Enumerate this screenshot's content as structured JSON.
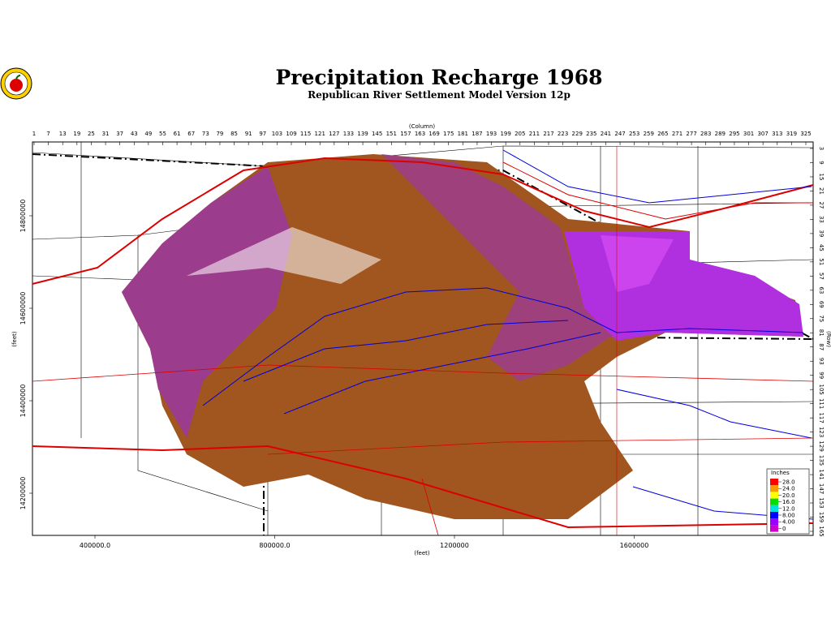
{
  "title": "Precipitation Recharge 1968",
  "subtitle": "Republican River Settlement Model Version 12p",
  "column_axis": {
    "label": "(Column)",
    "ticks": [
      "1",
      "7",
      "13",
      "19",
      "25",
      "31",
      "37",
      "43",
      "49",
      "55",
      "61",
      "67",
      "73",
      "79",
      "85",
      "91",
      "97",
      "103",
      "109",
      "115",
      "121",
      "127",
      "133",
      "139",
      "145",
      "151",
      "157",
      "163",
      "169",
      "175",
      "181",
      "187",
      "193",
      "199",
      "205",
      "211",
      "217",
      "223",
      "229",
      "235",
      "241",
      "247",
      "253",
      "259",
      "265",
      "271",
      "277",
      "283",
      "289",
      "295",
      "301",
      "307",
      "313",
      "319",
      "325"
    ]
  },
  "row_axis": {
    "label": "(Row)",
    "ticks": [
      "3",
      "9",
      "15",
      "21",
      "27",
      "33",
      "39",
      "45",
      "51",
      "57",
      "63",
      "69",
      "75",
      "81",
      "87",
      "93",
      "99",
      "105",
      "111",
      "117",
      "123",
      "129",
      "135",
      "141",
      "147",
      "153",
      "159",
      "165"
    ]
  },
  "x_axis": {
    "label": "(feet)",
    "ticks": [
      "400000.0",
      "800000.0",
      "1200000",
      "1600000"
    ]
  },
  "y_axis": {
    "label": "(feet)",
    "ticks": [
      "14800000",
      "14600000",
      "14400000",
      "14200000"
    ]
  },
  "legend": {
    "title": "Inches",
    "labels": [
      "28.0",
      "24.0",
      "20.0",
      "16.0",
      "12.0",
      "8.00",
      "4.00",
      "0"
    ],
    "colors": [
      "#ff0000",
      "#ff9900",
      "#ffff00",
      "#00dd00",
      "#00e0e0",
      "#0000ff",
      "#9900ff",
      "#cc00cc"
    ]
  }
}
